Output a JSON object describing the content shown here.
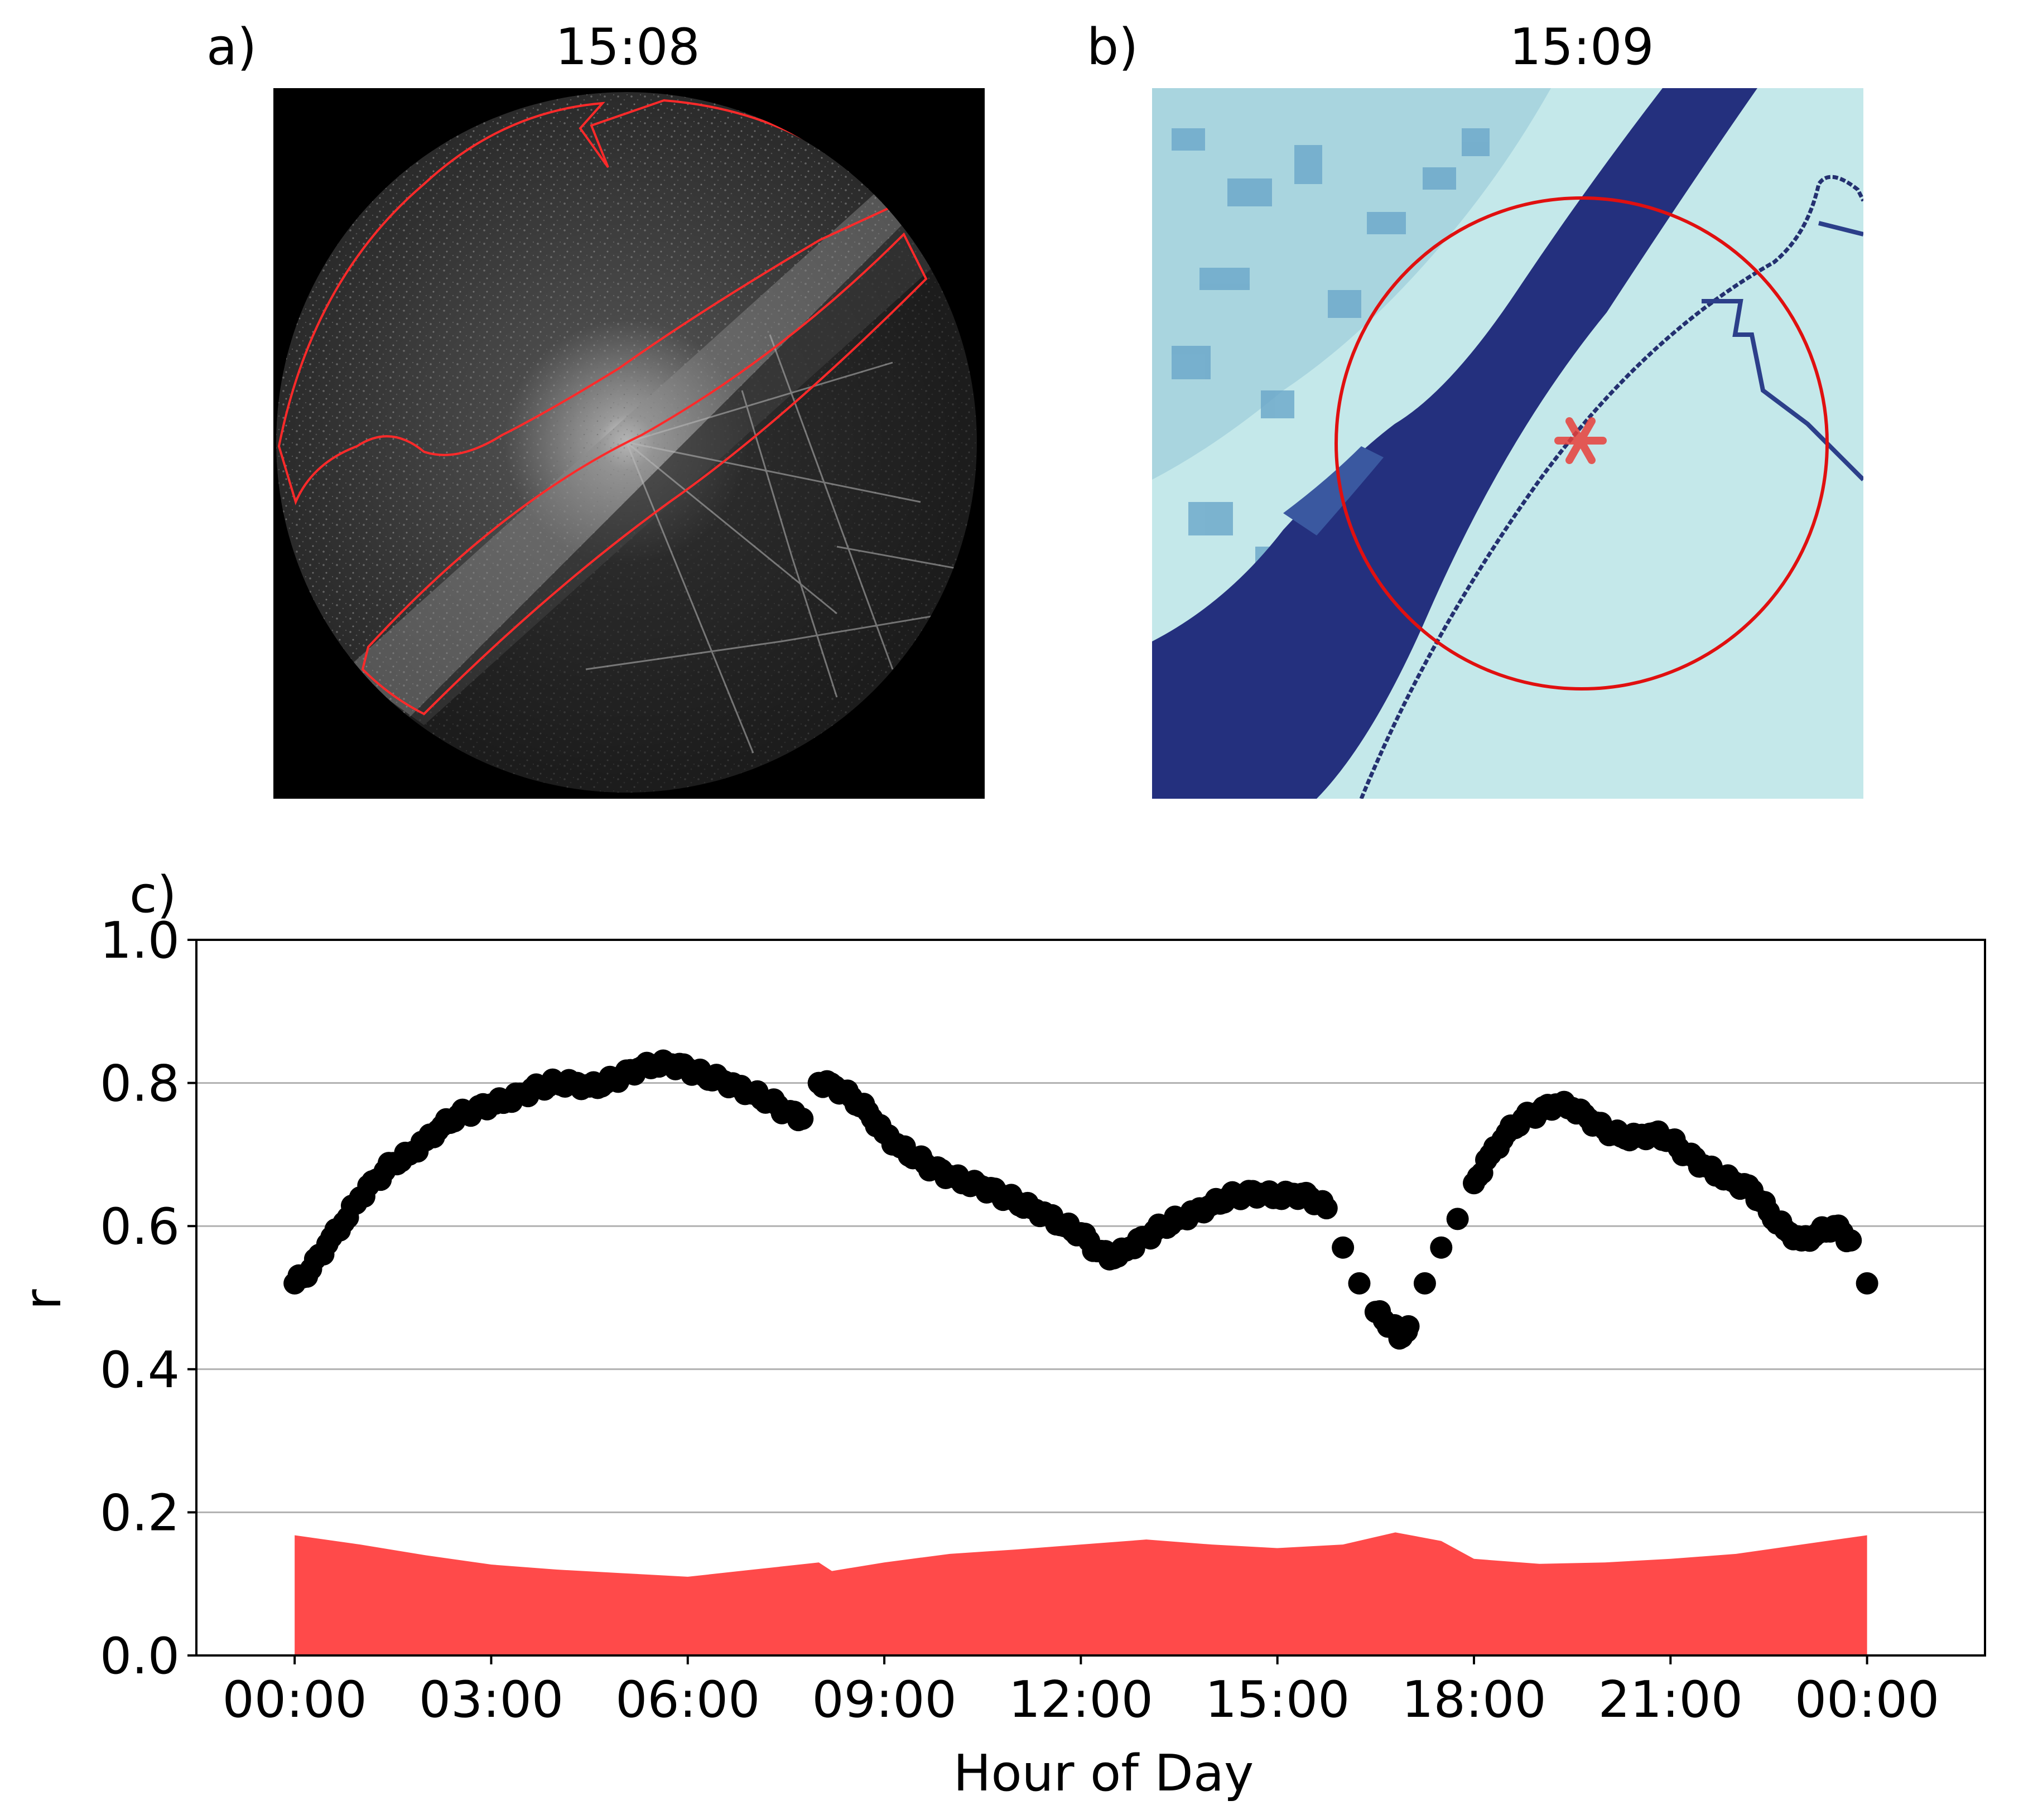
{
  "panel_a": {
    "label": "a)",
    "title": "15:08"
  },
  "panel_b": {
    "label": "b)",
    "title": "15:09"
  },
  "chart_data": {
    "type": "scatter",
    "panel_label": "c)",
    "title": "",
    "xlabel": "Hour of Day",
    "ylabel": "r",
    "xlim": [
      -1.5,
      25.8
    ],
    "ylim": [
      0.0,
      1.0
    ],
    "x_tick_values": [
      0,
      3,
      6,
      9,
      12,
      15,
      18,
      21,
      24
    ],
    "x_tick_labels": [
      "00:00",
      "03:00",
      "06:00",
      "09:00",
      "12:00",
      "15:00",
      "18:00",
      "21:00",
      "00:00"
    ],
    "y_ticks": [
      "0.0",
      "0.2",
      "0.4",
      "0.6",
      "0.8",
      "1.0"
    ],
    "grid": "horizontal",
    "series": [
      {
        "kind": "scatter",
        "color": "#000000",
        "points": [
          [
            0.0,
            0.52
          ],
          [
            0.25,
            0.54
          ],
          [
            0.5,
            0.575
          ],
          [
            0.75,
            0.605
          ],
          [
            1.0,
            0.64
          ],
          [
            1.25,
            0.665
          ],
          [
            1.5,
            0.688
          ],
          [
            1.75,
            0.7
          ],
          [
            2.0,
            0.72
          ],
          [
            2.25,
            0.74
          ],
          [
            2.5,
            0.755
          ],
          [
            2.75,
            0.762
          ],
          [
            3.0,
            0.77
          ],
          [
            3.25,
            0.775
          ],
          [
            3.5,
            0.785
          ],
          [
            3.75,
            0.795
          ],
          [
            4.0,
            0.8
          ],
          [
            4.25,
            0.8
          ],
          [
            4.5,
            0.795
          ],
          [
            4.75,
            0.8
          ],
          [
            5.0,
            0.81
          ],
          [
            5.25,
            0.82
          ],
          [
            5.5,
            0.825
          ],
          [
            5.75,
            0.826
          ],
          [
            6.0,
            0.82
          ],
          [
            6.25,
            0.81
          ],
          [
            6.5,
            0.805
          ],
          [
            6.75,
            0.795
          ],
          [
            7.0,
            0.785
          ],
          [
            7.25,
            0.775
          ],
          [
            7.5,
            0.76
          ],
          [
            7.75,
            0.75
          ],
          [
            8.0,
            0.8
          ],
          [
            8.25,
            0.795
          ],
          [
            8.5,
            0.78
          ],
          [
            8.75,
            0.76
          ],
          [
            9.0,
            0.73
          ],
          [
            9.25,
            0.71
          ],
          [
            9.5,
            0.695
          ],
          [
            9.75,
            0.68
          ],
          [
            10.0,
            0.67
          ],
          [
            10.25,
            0.66
          ],
          [
            10.5,
            0.655
          ],
          [
            10.75,
            0.645
          ],
          [
            11.0,
            0.635
          ],
          [
            11.25,
            0.625
          ],
          [
            11.5,
            0.615
          ],
          [
            11.75,
            0.6
          ],
          [
            12.0,
            0.59
          ],
          [
            12.25,
            0.565
          ],
          [
            12.5,
            0.555
          ],
          [
            12.75,
            0.57
          ],
          [
            13.0,
            0.585
          ],
          [
            13.25,
            0.6
          ],
          [
            13.5,
            0.61
          ],
          [
            13.75,
            0.62
          ],
          [
            14.0,
            0.63
          ],
          [
            14.25,
            0.64
          ],
          [
            14.5,
            0.645
          ],
          [
            14.75,
            0.645
          ],
          [
            15.0,
            0.64
          ],
          [
            15.25,
            0.645
          ],
          [
            15.5,
            0.64
          ],
          [
            15.75,
            0.625
          ],
          [
            16.0,
            0.57
          ],
          [
            16.25,
            0.52
          ],
          [
            16.5,
            0.48
          ],
          [
            16.75,
            0.46
          ],
          [
            16.9,
            0.445
          ],
          [
            17.0,
            0.46
          ],
          [
            17.25,
            0.52
          ],
          [
            17.5,
            0.57
          ],
          [
            17.75,
            0.61
          ],
          [
            18.0,
            0.66
          ],
          [
            18.25,
            0.7
          ],
          [
            18.5,
            0.73
          ],
          [
            18.75,
            0.75
          ],
          [
            19.0,
            0.76
          ],
          [
            19.25,
            0.77
          ],
          [
            19.5,
            0.765
          ],
          [
            19.75,
            0.75
          ],
          [
            20.0,
            0.735
          ],
          [
            20.25,
            0.725
          ],
          [
            20.5,
            0.725
          ],
          [
            20.75,
            0.73
          ],
          [
            21.0,
            0.72
          ],
          [
            21.25,
            0.7
          ],
          [
            21.5,
            0.685
          ],
          [
            21.75,
            0.67
          ],
          [
            22.0,
            0.66
          ],
          [
            22.25,
            0.65
          ],
          [
            22.5,
            0.62
          ],
          [
            22.75,
            0.595
          ],
          [
            23.0,
            0.58
          ],
          [
            23.25,
            0.59
          ],
          [
            23.5,
            0.6
          ],
          [
            23.75,
            0.58
          ],
          [
            24.0,
            0.52
          ]
        ]
      },
      {
        "kind": "area",
        "color": "#ff4a4a",
        "points": [
          [
            0.0,
            0.168
          ],
          [
            1.0,
            0.155
          ],
          [
            2.0,
            0.14
          ],
          [
            3.0,
            0.127
          ],
          [
            4.0,
            0.12
          ],
          [
            5.0,
            0.115
          ],
          [
            6.0,
            0.11
          ],
          [
            7.0,
            0.12
          ],
          [
            8.0,
            0.13
          ],
          [
            8.2,
            0.118
          ],
          [
            9.0,
            0.13
          ],
          [
            10.0,
            0.142
          ],
          [
            11.0,
            0.148
          ],
          [
            12.0,
            0.155
          ],
          [
            13.0,
            0.162
          ],
          [
            14.0,
            0.155
          ],
          [
            15.0,
            0.15
          ],
          [
            16.0,
            0.155
          ],
          [
            16.8,
            0.172
          ],
          [
            17.5,
            0.16
          ],
          [
            18.0,
            0.135
          ],
          [
            19.0,
            0.128
          ],
          [
            20.0,
            0.13
          ],
          [
            21.0,
            0.135
          ],
          [
            22.0,
            0.142
          ],
          [
            23.0,
            0.155
          ],
          [
            24.0,
            0.168
          ]
        ]
      }
    ]
  },
  "colors": {
    "radar_bg": "#000000",
    "contour": "#ff2a2a",
    "map_light": "#bfe5e8",
    "map_dark": "#2a3a8c",
    "map_mid": "#5aa8c8",
    "circle": "#e01010",
    "star": "#e8403a"
  }
}
